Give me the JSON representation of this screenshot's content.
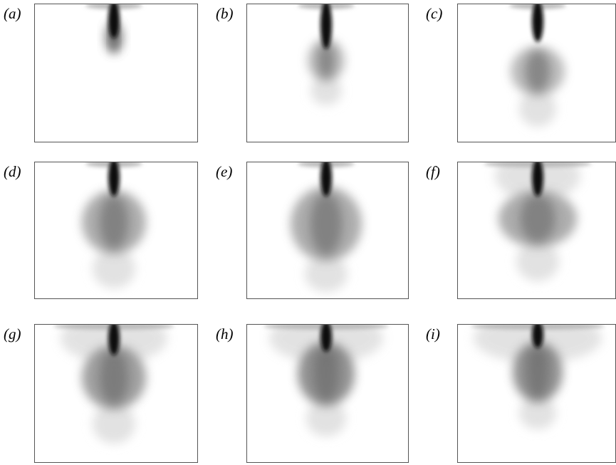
{
  "figure": {
    "panels": [
      {
        "label": "(a)"
      },
      {
        "label": "(b)"
      },
      {
        "label": "(c)"
      },
      {
        "label": "(d)"
      },
      {
        "label": "(e)"
      },
      {
        "label": "(f)"
      },
      {
        "label": "(g)"
      },
      {
        "label": "(h)"
      },
      {
        "label": "(i)"
      }
    ]
  }
}
